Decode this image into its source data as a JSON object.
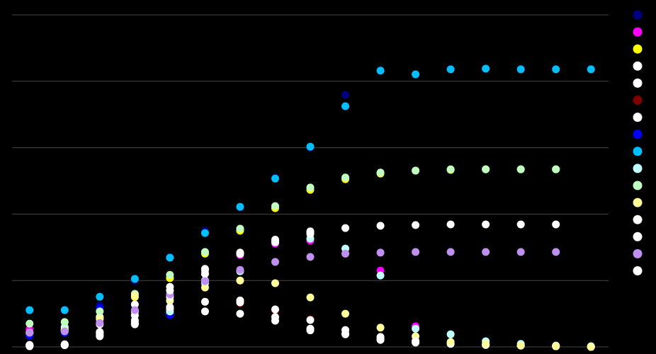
{
  "chart_data": {
    "type": "scatter",
    "x": [
      0,
      1,
      2,
      3,
      4,
      5,
      6,
      7,
      8,
      9,
      10,
      11,
      12,
      13,
      14,
      15,
      16
    ],
    "xlim": [
      -0.5,
      16.5
    ],
    "ylim": [
      0,
      100
    ],
    "yticks": [
      0,
      20,
      40,
      60,
      80,
      100
    ],
    "grid": true,
    "legend": "right",
    "series": [
      {
        "color": "#000080",
        "values": [
          11,
          11,
          12.5,
          20,
          27,
          35,
          42,
          51,
          60,
          75.9,
          null,
          null,
          null,
          null,
          null,
          null,
          null
        ]
      },
      {
        "color": "#ff00ff",
        "values": [
          5.3,
          6.0,
          8.1,
          10.7,
          15.4,
          22.4,
          27.7,
          31.1,
          32.0,
          28.1,
          23.0,
          6.2,
          null,
          null,
          null,
          null,
          null
        ]
      },
      {
        "color": "#ffff00",
        "values": [
          4.3,
          5.3,
          9.0,
          15.0,
          20.7,
          28.1,
          35.0,
          41.8,
          47.3,
          50.5,
          52.2,
          53.1,
          53.3,
          53.5,
          53.5,
          53.5,
          null
        ]
      },
      {
        "color": "#ffffff",
        "values": [
          0.6,
          4.7,
          6.8,
          12.8,
          18.1,
          23.2,
          28.4,
          32.0,
          34.5,
          35.8,
          36.5,
          36.7,
          36.9,
          36.9,
          36.9,
          36.9,
          null
        ]
      },
      {
        "color": "#ffffff",
        "values": [
          0.4,
          0.6,
          3.2,
          6.8,
          9.8,
          10.7,
          10.0,
          7.9,
          5.5,
          3.8,
          2.1,
          1.5,
          1.1,
          0.6,
          0.4,
          0.2,
          0
        ]
      },
      {
        "color": "#800000",
        "values": [
          4.0,
          5.0,
          9.0,
          10.5,
          11.3,
          13.6,
          13.2,
          11.0,
          8.3,
          null,
          null,
          null,
          null,
          null,
          null,
          null,
          null
        ]
      },
      {
        "color": "#ffffff",
        "values": [
          4.3,
          5.3,
          9.0,
          10.7,
          11.5,
          13.6,
          13.4,
          11.3,
          8.1,
          5.1,
          3.0,
          1.3,
          0.9,
          0.6,
          0.4,
          0.2,
          0
        ]
      },
      {
        "color": "#0000ff",
        "values": [
          3.4,
          4.3,
          11.7,
          7.3,
          9.6,
          null,
          null,
          null,
          null,
          null,
          null,
          null,
          null,
          null,
          null,
          null,
          null
        ]
      },
      {
        "color": "#00bfff",
        "values": [
          11.1,
          11.1,
          15.1,
          20.5,
          26.9,
          34.3,
          42.2,
          50.7,
          60.3,
          72.5,
          83.2,
          82.1,
          83.6,
          83.8,
          83.6,
          83.6,
          83.6
        ]
      },
      {
        "color": "#c0ffff",
        "values": [
          0.4,
          6.0,
          4.3,
          7.5,
          10.7,
          19.2,
          22.8,
          31.6,
          32.6,
          29.6,
          21.5,
          5.5,
          3.8,
          1.7,
          0.9,
          0.4,
          0.2
        ]
      },
      {
        "color": "#c0ffc0",
        "values": [
          7.0,
          7.5,
          10.7,
          16.0,
          21.7,
          28.6,
          35.6,
          42.4,
          48.0,
          51.0,
          52.5,
          53.1,
          53.5,
          53.5,
          53.5,
          53.5,
          null
        ]
      },
      {
        "color": "#ffff99",
        "values": [
          4.3,
          4.9,
          8.5,
          15.4,
          13.9,
          17.9,
          20.0,
          19.2,
          14.9,
          10.0,
          5.8,
          3.2,
          1.5,
          0.9,
          0.4,
          0.2,
          0
        ]
      },
      {
        "color": "#ffffff",
        "values": [
          0.2,
          0.5,
          4.0,
          7.0,
          12.0,
          20.0,
          28.0,
          31.5,
          34.0,
          null,
          null,
          null,
          null,
          null,
          null,
          null,
          null
        ]
      },
      {
        "color": "#ffffff",
        "values": [
          0.3,
          0.8,
          4.5,
          9.5,
          15.0,
          22.0,
          14.0,
          9.0,
          5.0,
          4.0,
          2.5,
          1.8,
          null,
          null,
          null,
          null,
          null
        ]
      },
      {
        "color": "#c090f0",
        "values": [
          4.3,
          4.7,
          7.2,
          11.1,
          15.8,
          19.8,
          23.2,
          25.6,
          27.1,
          28.1,
          28.4,
          28.6,
          28.6,
          28.6,
          28.6,
          28.6,
          null
        ]
      },
      {
        "color": "#ffffff",
        "values": [
          0.5,
          0.7,
          3.5,
          8.0,
          17.0,
          23.5,
          28.0,
          32.3,
          34.8,
          null,
          null,
          null,
          null,
          null,
          null,
          null,
          null
        ]
      }
    ]
  }
}
